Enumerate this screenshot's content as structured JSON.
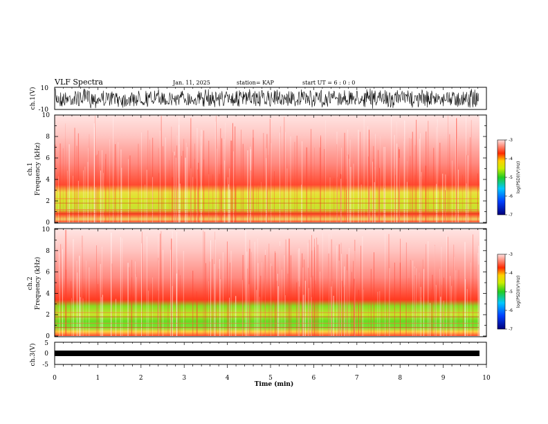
{
  "header": {
    "title": "VLF Spectra",
    "date": "Jan. 11, 2025",
    "station": "station= KAP",
    "start": "start  UT =  6 : 0 : 0"
  },
  "chart_data": [
    {
      "type": "line",
      "panel": "ch1-waveform",
      "ylabel": "ch.1(V)",
      "ylim": [
        -10,
        10
      ],
      "yticks": [
        "10",
        "-10"
      ],
      "xlim": [
        0,
        10
      ],
      "description_color": "#000000"
    },
    {
      "type": "heatmap",
      "panel": "ch1-spectrogram",
      "ylabel": "ch.1\nFrequency (kHz)",
      "ylabel_line1": "ch.1",
      "ylabel_line2": "Frequency (kHz)",
      "ylim": [
        0,
        10
      ],
      "yticks": [
        "0",
        "2",
        "4",
        "6",
        "8",
        "10"
      ],
      "xlim": [
        0,
        9.8
      ],
      "colorbar": {
        "label": "log(PSD)(V²/Hz)",
        "range": [
          -7,
          -3
        ],
        "ticks": [
          "-3",
          "-4",
          "-5",
          "-6",
          "-7"
        ]
      }
    },
    {
      "type": "heatmap",
      "panel": "ch2-spectrogram",
      "ylabel_line1": "ch.2",
      "ylabel_line2": "Frequency (kHz)",
      "ylim": [
        0,
        10
      ],
      "yticks": [
        "0",
        "2",
        "4",
        "6",
        "8",
        "10"
      ],
      "xlim": [
        0,
        9.8
      ],
      "colorbar": {
        "label": "log(PSD)(V²/Hz)",
        "range": [
          -7,
          -3
        ],
        "ticks": [
          "-3",
          "-4",
          "-5",
          "-6",
          "-7"
        ]
      }
    },
    {
      "type": "line",
      "panel": "ch3-waveform",
      "ylabel": "ch.3(V)",
      "ylim": [
        -5,
        5
      ],
      "yticks": [
        "5",
        "0",
        "-5"
      ],
      "xlim": [
        0,
        10
      ],
      "xlabel": "Time (min)",
      "xticks": [
        "0",
        "1",
        "2",
        "3",
        "4",
        "5",
        "6",
        "7",
        "8",
        "9",
        "10"
      ]
    }
  ],
  "colors": {
    "low": "#00007a",
    "mid_low": "#00aaff",
    "mid": "#22cc22",
    "mid_high": "#eeee00",
    "high": "#ff2a00",
    "background": "#ffffff"
  }
}
